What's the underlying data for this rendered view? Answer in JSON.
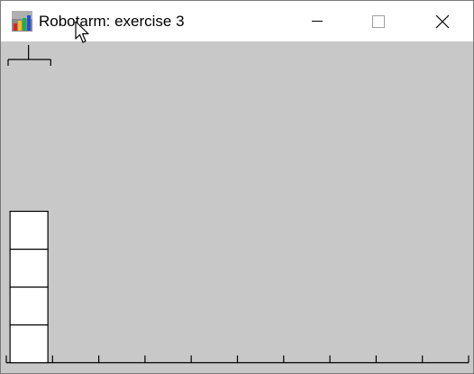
{
  "window": {
    "title": "Robotarm: exercise 3",
    "icon": "bar-chart-app-icon",
    "controls": {
      "minimize_icon": "minimize-icon",
      "maximize_icon": "maximize-icon",
      "close_icon": "close-icon"
    }
  },
  "canvas": {
    "background": "#c8c8c8",
    "floor_slots": 10,
    "robot_arm_position_slot": 0,
    "stacks": [
      {
        "slot": 0,
        "blocks": 4
      }
    ],
    "block_fill": "#ffffff",
    "line_color": "#000000"
  },
  "cursor": "arrow-cursor-icon"
}
